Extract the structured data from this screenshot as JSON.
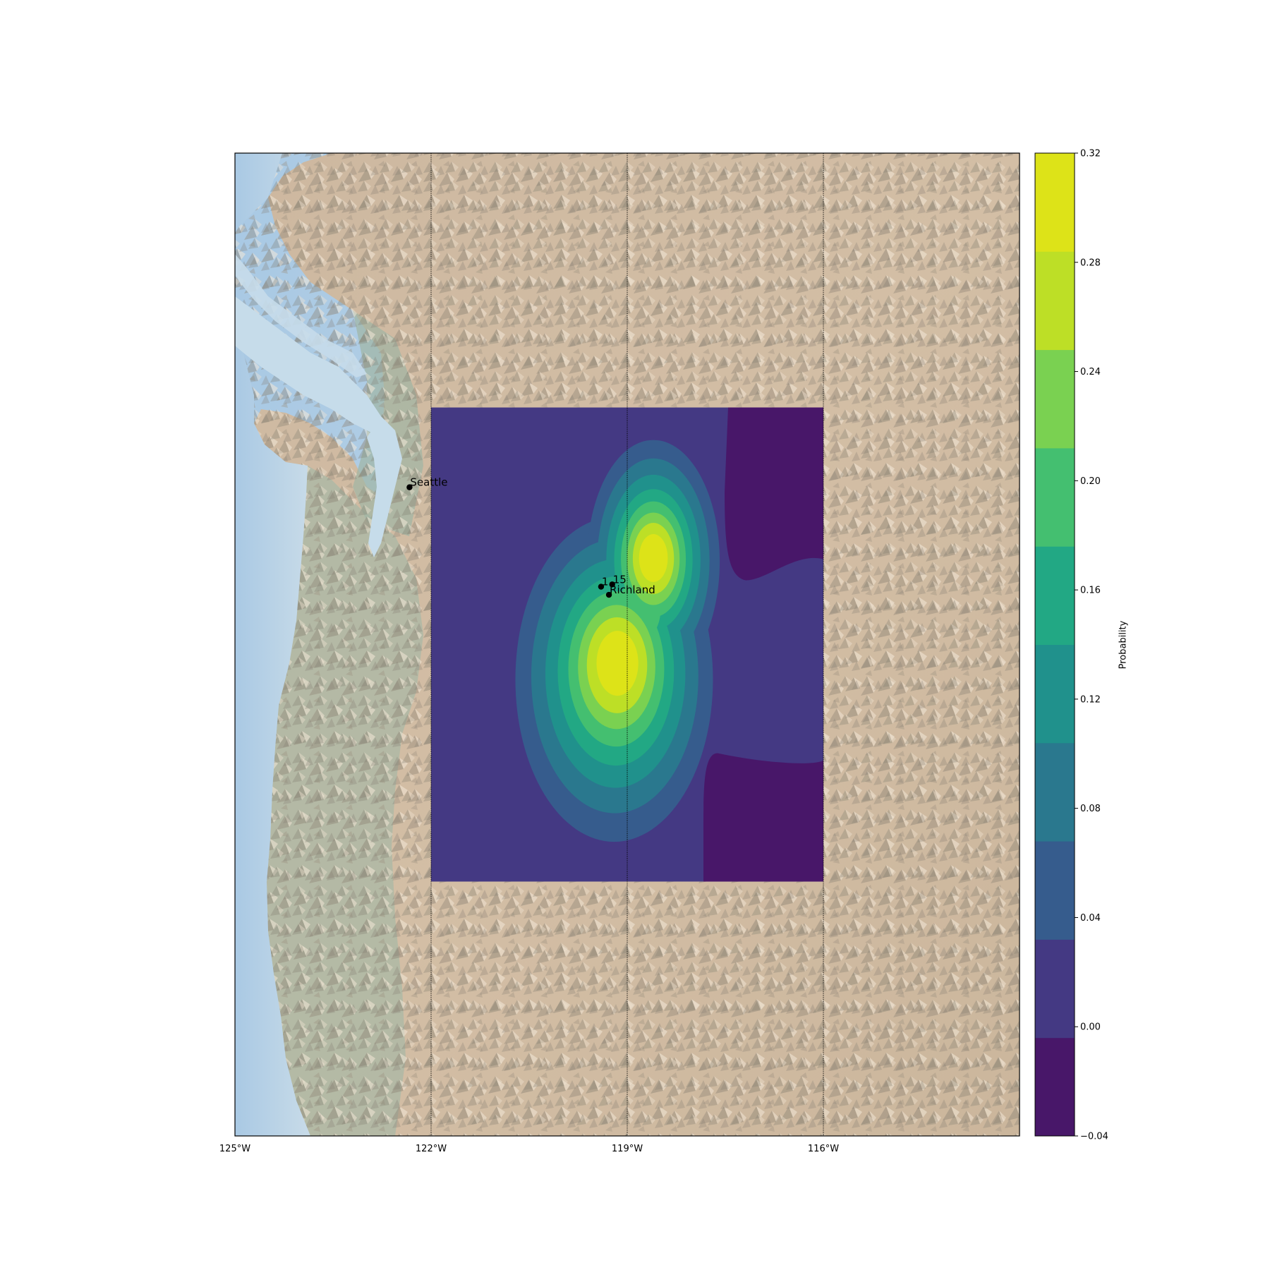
{
  "map": {
    "lon_range": [
      -125,
      -113
    ],
    "lat_range": [
      42,
      50.5
    ],
    "meridians": [
      {
        "lon": -125,
        "label": "125°W"
      },
      {
        "lon": -122,
        "label": "122°W"
      },
      {
        "lon": -119,
        "label": "119°W"
      },
      {
        "lon": -116,
        "label": "116°W"
      }
    ],
    "colors": {
      "water": "#c6dcea",
      "ocean": "#b5d1e6",
      "terrain_light": "#d6bfa4",
      "terrain_dark": "#8e8a7a",
      "lowland_green": "#9fb5a4"
    }
  },
  "overlay": {
    "lon_range": [
      -122,
      -116
    ],
    "lat_range": [
      44.2,
      48.3
    ],
    "levels": [
      -0.04,
      0.0,
      0.04,
      0.08,
      0.12,
      0.16,
      0.2,
      0.24,
      0.28,
      0.32
    ],
    "colors": [
      "#481769",
      "#443983",
      "#365c8d",
      "#2a788e",
      "#20918c",
      "#22a884",
      "#44bf70",
      "#7ad151",
      "#bddf26",
      "#dde318"
    ],
    "peaks": [
      {
        "lon": -119.2,
        "lat": 46.1,
        "value": 0.31
      },
      {
        "lon": -118.6,
        "lat": 47.0,
        "value": 0.29
      }
    ]
  },
  "cities": [
    {
      "name": "Seattle",
      "label": "Seattle",
      "lon": -122.33,
      "lat": 47.61
    },
    {
      "name": "point-1",
      "label": "1",
      "lon": -119.4,
      "lat": 46.75
    },
    {
      "name": "point-15",
      "label": "15",
      "lon": -119.23,
      "lat": 46.77
    },
    {
      "name": "Richland",
      "label": "Richland",
      "lon": -119.28,
      "lat": 46.68
    }
  ],
  "colorbar": {
    "label": "Probability",
    "ticks": [
      "0.32",
      "0.28",
      "0.24",
      "0.20",
      "0.16",
      "0.12",
      "0.08",
      "0.04",
      "0.00",
      "−0.04"
    ]
  }
}
